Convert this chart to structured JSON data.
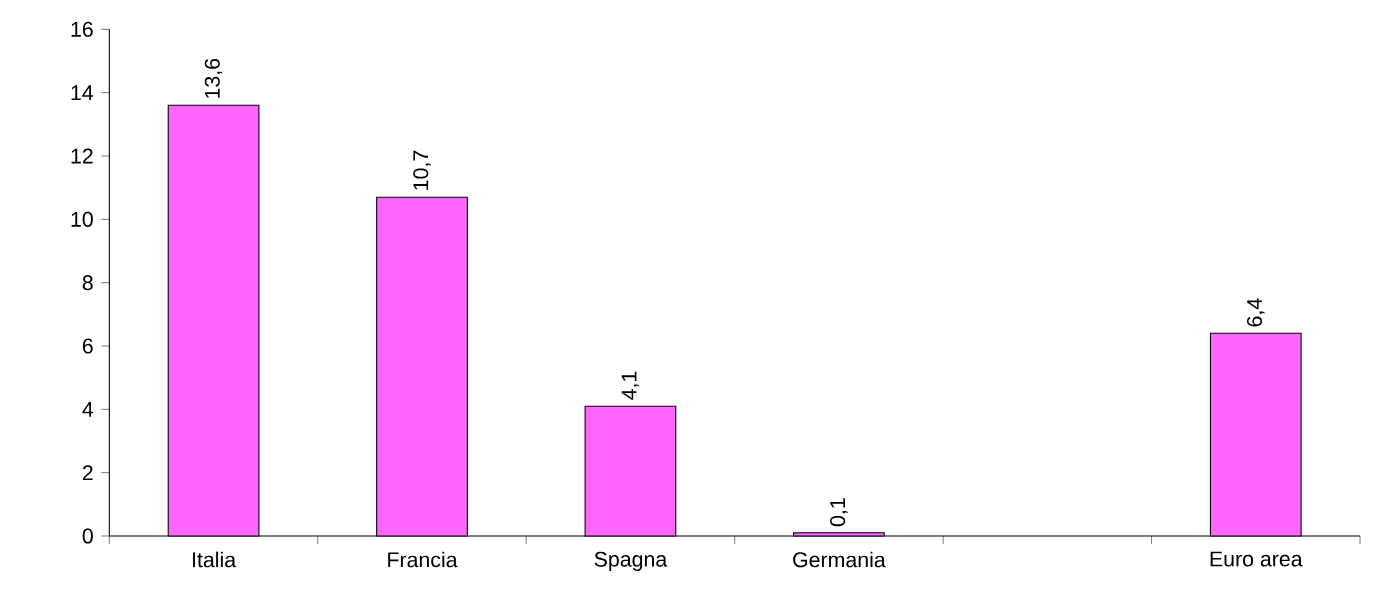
{
  "chart_data": {
    "type": "bar",
    "categories": [
      "Italia",
      "Francia",
      "Spagna",
      "Germania",
      null,
      "Euro area"
    ],
    "values": [
      13.6,
      10.7,
      4.1,
      0.1,
      null,
      6.4
    ],
    "value_labels": [
      "13,6",
      "10,7",
      "4,1",
      "0,1",
      null,
      "6,4"
    ],
    "color": "#ff66ff",
    "ylim": [
      0,
      16
    ],
    "yticks": [
      0,
      2,
      4,
      6,
      8,
      10,
      12,
      14,
      16
    ]
  }
}
